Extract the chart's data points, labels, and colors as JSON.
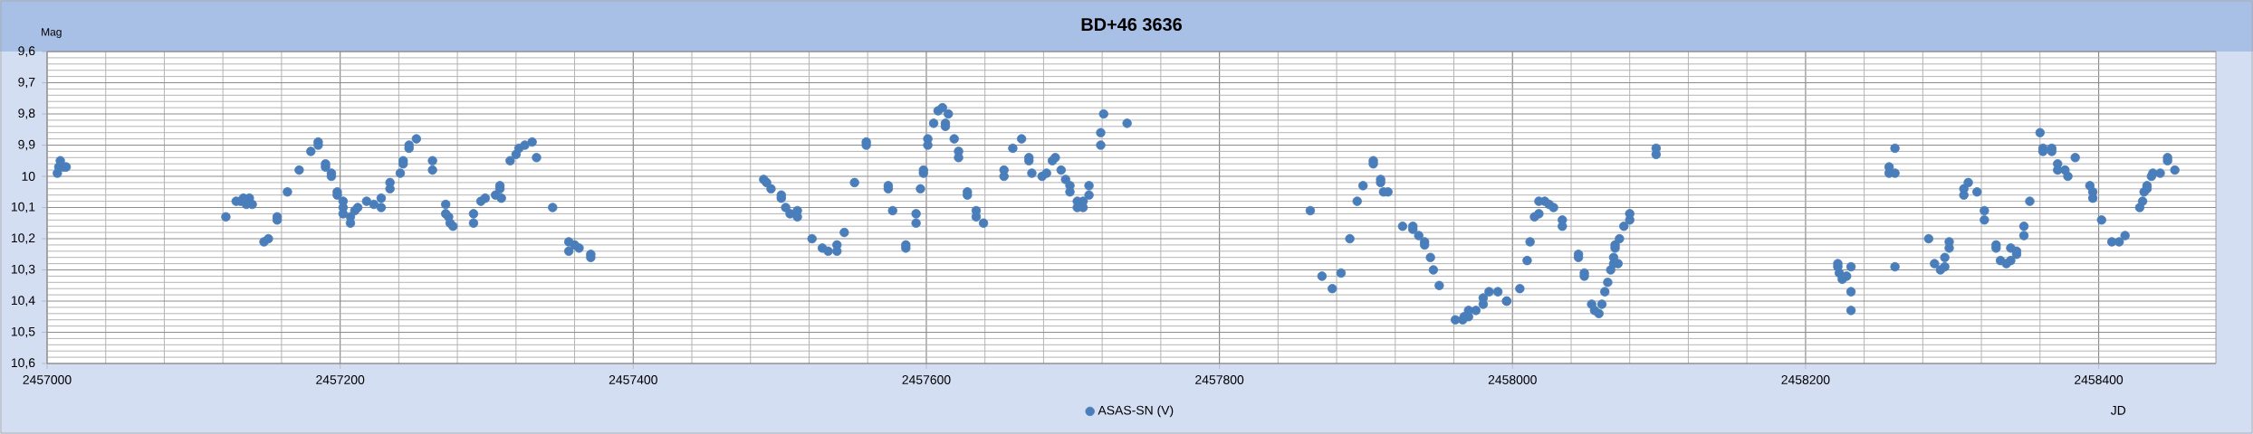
{
  "chart_data": {
    "type": "scatter",
    "title": "BD+46 3636",
    "xlabel": "JD",
    "ylabel": "Mag",
    "x": [
      2457007,
      2457008,
      2457009,
      2457011,
      2457013,
      2457122,
      2457129,
      2457132,
      2457134,
      2457136,
      2457138,
      2457140,
      2457148,
      2457151,
      2457157,
      2457157,
      2457164,
      2457172,
      2457180,
      2457185,
      2457185,
      2457190,
      2457190,
      2457194,
      2457194,
      2457198,
      2457198,
      2457202,
      2457202,
      2457202,
      2457207,
      2457207,
      2457210,
      2457212,
      2457218,
      2457223,
      2457228,
      2457228,
      2457234,
      2457234,
      2457241,
      2457243,
      2457243,
      2457247,
      2457247,
      2457252,
      2457263,
      2457263,
      2457272,
      2457272,
      2457274,
      2457275,
      2457277,
      2457291,
      2457291,
      2457296,
      2457299,
      2457306,
      2457309,
      2457309,
      2457310,
      2457316,
      2457320,
      2457322,
      2457326,
      2457331,
      2457334,
      2457345,
      2457356,
      2457356,
      2457360,
      2457363,
      2457371,
      2457371,
      2457489,
      2457491,
      2457494,
      2457501,
      2457501,
      2457504,
      2457507,
      2457512,
      2457512,
      2457522,
      2457529,
      2457533,
      2457539,
      2457539,
      2457544,
      2457551,
      2457559,
      2457559,
      2457574,
      2457574,
      2457577,
      2457586,
      2457586,
      2457593,
      2457593,
      2457596,
      2457598,
      2457598,
      2457601,
      2457601,
      2457605,
      2457608,
      2457611,
      2457613,
      2457613,
      2457615,
      2457619,
      2457622,
      2457622,
      2457628,
      2457628,
      2457634,
      2457634,
      2457639,
      2457653,
      2457653,
      2457659,
      2457665,
      2457670,
      2457670,
      2457672,
      2457679,
      2457682,
      2457686,
      2457688,
      2457692,
      2457695,
      2457698,
      2457698,
      2457703,
      2457703,
      2457707,
      2457707,
      2457711,
      2457711,
      2457719,
      2457719,
      2457721,
      2457737,
      2457862,
      2457870,
      2457877,
      2457883,
      2457889,
      2457894,
      2457898,
      2457905,
      2457905,
      2457910,
      2457910,
      2457912,
      2457915,
      2457925,
      2457932,
      2457932,
      2457936,
      2457940,
      2457940,
      2457944,
      2457946,
      2457950,
      2457961,
      2457966,
      2457967,
      2457970,
      2457970,
      2457975,
      2457980,
      2457980,
      2457984,
      2457990,
      2457996,
      2457996,
      2458005,
      2458010,
      2458012,
      2458015,
      2458018,
      2458018,
      2458022,
      2458025,
      2458028,
      2458034,
      2458034,
      2458045,
      2458045,
      2458049,
      2458049,
      2458054,
      2458056,
      2458059,
      2458061,
      2458063,
      2458065,
      2458067,
      2458069,
      2458069,
      2458070,
      2458070,
      2458072,
      2458073,
      2458076,
      2458080,
      2458080,
      2458098,
      2458098,
      2458222,
      2458222,
      2458223,
      2458225,
      2458228,
      2458231,
      2458231,
      2458231,
      2458257,
      2458257,
      2458261,
      2458261,
      2458261,
      2458284,
      2458288,
      2458292,
      2458295,
      2458295,
      2458298,
      2458298,
      2458308,
      2458308,
      2458311,
      2458317,
      2458322,
      2458322,
      2458330,
      2458330,
      2458333,
      2458337,
      2458340,
      2458340,
      2458344,
      2458344,
      2458349,
      2458349,
      2458353,
      2458360,
      2458362,
      2458362,
      2458368,
      2458368,
      2458372,
      2458372,
      2458377,
      2458379,
      2458384,
      2458394,
      2458396,
      2458396,
      2458402,
      2458409,
      2458414,
      2458418,
      2458428,
      2458430,
      2458431,
      2458433,
      2458433,
      2458436,
      2458437,
      2458442,
      2458447,
      2458447,
      2458452
    ],
    "series": [
      {
        "name": "ASAS-SN (V)",
        "color": "#4a7ebb",
        "values": [
          9.99,
          9.97,
          9.95,
          9.97,
          9.97,
          10.13,
          10.08,
          10.08,
          10.07,
          10.09,
          10.07,
          10.09,
          10.21,
          10.2,
          10.13,
          10.14,
          10.05,
          9.98,
          9.92,
          9.89,
          9.9,
          9.96,
          9.97,
          9.99,
          10.0,
          10.05,
          10.06,
          10.08,
          10.1,
          10.12,
          10.13,
          10.15,
          10.11,
          10.1,
          10.08,
          10.09,
          10.07,
          10.1,
          10.02,
          10.04,
          9.99,
          9.95,
          9.96,
          9.9,
          9.91,
          9.88,
          9.95,
          9.98,
          10.09,
          10.12,
          10.13,
          10.15,
          10.16,
          10.12,
          10.15,
          10.08,
          10.07,
          10.06,
          10.03,
          10.04,
          10.07,
          9.95,
          9.93,
          9.91,
          9.9,
          9.89,
          9.94,
          10.1,
          10.21,
          10.24,
          10.22,
          10.23,
          10.25,
          10.26,
          10.01,
          10.02,
          10.04,
          10.06,
          10.07,
          10.1,
          10.12,
          10.11,
          10.13,
          10.2,
          10.23,
          10.24,
          10.22,
          10.24,
          10.18,
          10.02,
          9.89,
          9.9,
          10.03,
          10.04,
          10.11,
          10.22,
          10.23,
          10.12,
          10.15,
          10.04,
          9.98,
          9.99,
          9.88,
          9.9,
          9.83,
          9.79,
          9.78,
          9.83,
          9.84,
          9.8,
          9.88,
          9.92,
          9.94,
          10.05,
          10.06,
          10.11,
          10.13,
          10.15,
          9.98,
          10.0,
          9.91,
          9.88,
          9.94,
          9.95,
          9.99,
          10.0,
          9.99,
          9.95,
          9.94,
          9.98,
          10.01,
          10.03,
          10.05,
          10.08,
          10.1,
          10.08,
          10.1,
          10.03,
          10.06,
          9.86,
          9.9,
          9.8,
          9.83,
          10.11,
          10.32,
          10.36,
          10.31,
          10.2,
          10.08,
          10.03,
          9.95,
          9.96,
          10.01,
          10.02,
          10.05,
          10.05,
          10.16,
          10.16,
          10.17,
          10.19,
          10.21,
          10.22,
          10.26,
          10.3,
          10.35,
          10.46,
          10.46,
          10.45,
          10.43,
          10.45,
          10.43,
          10.39,
          10.41,
          10.37,
          10.37,
          10.4,
          10.4,
          10.36,
          10.27,
          10.21,
          10.13,
          10.08,
          10.12,
          10.08,
          10.09,
          10.1,
          10.14,
          10.16,
          10.25,
          10.26,
          10.31,
          10.32,
          10.41,
          10.43,
          10.44,
          10.41,
          10.37,
          10.34,
          10.3,
          10.26,
          10.28,
          10.22,
          10.23,
          10.28,
          10.2,
          10.16,
          10.12,
          10.14,
          9.91,
          9.93,
          10.28,
          10.29,
          10.31,
          10.33,
          10.32,
          10.29,
          10.37,
          10.43,
          9.97,
          9.99,
          9.91,
          9.99,
          10.29,
          10.2,
          10.28,
          10.3,
          10.26,
          10.29,
          10.21,
          10.23,
          10.04,
          10.06,
          10.02,
          10.05,
          10.11,
          10.14,
          10.22,
          10.23,
          10.27,
          10.28,
          10.23,
          10.27,
          10.24,
          10.25,
          10.16,
          10.19,
          10.08,
          9.86,
          9.91,
          9.92,
          9.91,
          9.92,
          9.96,
          9.98,
          9.98,
          10.0,
          9.94,
          10.03,
          10.05,
          10.07,
          10.14,
          10.21,
          10.21,
          10.19,
          10.1,
          10.08,
          10.05,
          10.03,
          10.04,
          10.0,
          9.99,
          9.99,
          9.94,
          9.95,
          9.98
        ]
      }
    ],
    "xlim": [
      2457000,
      2458480
    ],
    "ylim": [
      10.6,
      9.6
    ],
    "xticks": [
      2457000,
      2457200,
      2457400,
      2457600,
      2457800,
      2458000,
      2458200,
      2458400
    ],
    "yticks": [
      {
        "value": 9.6,
        "label": "9,6"
      },
      {
        "value": 9.7,
        "label": "9,7"
      },
      {
        "value": 9.8,
        "label": "9,8"
      },
      {
        "value": 9.9,
        "label": "9,9"
      },
      10,
      {
        "value": 10.1,
        "label": "10,1"
      },
      {
        "value": 10.2,
        "label": "10,2"
      },
      {
        "value": 10.3,
        "label": "10,3"
      },
      {
        "value": 10.4,
        "label": "10,4"
      },
      {
        "value": 10.5,
        "label": "10,5"
      },
      {
        "value": 10.6,
        "label": "10,6"
      }
    ],
    "grid": true,
    "legend": "bottom",
    "marker": "circle"
  }
}
